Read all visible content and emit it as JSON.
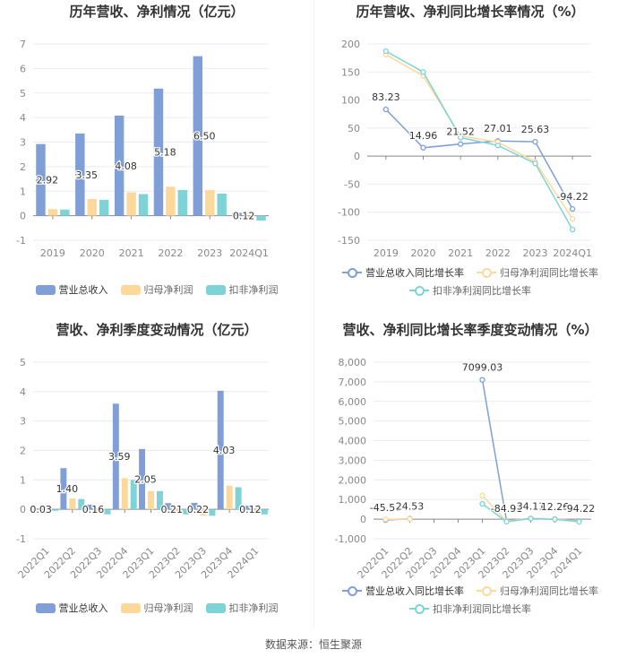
{
  "colors": {
    "revenue": "#7f9fd6",
    "net": "#fdd89b",
    "deducted": "#7dd3d5"
  },
  "footer": "数据来源：恒生聚源",
  "chart_data": [
    {
      "type": "bar",
      "title": "历年营收、净利情况（亿元）",
      "categories": [
        "2019",
        "2020",
        "2021",
        "2022",
        "2023",
        "2024Q1"
      ],
      "ylim": [
        -1,
        7
      ],
      "yticks": [
        -1,
        0,
        1,
        2,
        3,
        4,
        5,
        6,
        7
      ],
      "grid": true,
      "legend": "bottom",
      "series": [
        {
          "name": "营业总收入",
          "values": [
            2.92,
            3.35,
            4.08,
            5.18,
            6.5,
            0.12
          ],
          "labels": [
            "2.92",
            "3.35",
            "4.08",
            "5.18",
            "6.50",
            "0.12"
          ]
        },
        {
          "name": "归母净利润",
          "values": [
            0.27,
            0.68,
            0.95,
            1.18,
            1.04,
            -0.03
          ]
        },
        {
          "name": "扣非净利润",
          "values": [
            0.25,
            0.65,
            0.88,
            1.05,
            0.9,
            -0.2
          ]
        }
      ]
    },
    {
      "type": "line",
      "title": "历年营收、净利同比增长率情况（%）",
      "categories": [
        "2019",
        "2020",
        "2021",
        "2022",
        "2023",
        "2024Q1"
      ],
      "ylim": [
        -150,
        200
      ],
      "yticks": [
        -150,
        -100,
        -50,
        0,
        50,
        100,
        150,
        200
      ],
      "grid": true,
      "legend": "bottom",
      "series": [
        {
          "name": "营业总收入同比增长率",
          "values": [
            83.23,
            14.96,
            21.52,
            27.01,
            25.63,
            -94.22
          ],
          "labels": [
            "83.23",
            "14.96",
            "21.52",
            "27.01",
            "25.63",
            "-94.22"
          ]
        },
        {
          "name": "归母净利润同比增长率",
          "values": [
            181,
            143,
            36,
            25,
            -10,
            -112
          ]
        },
        {
          "name": "扣非净利润同比增长率",
          "values": [
            187,
            150,
            33,
            19,
            -13,
            -131
          ]
        }
      ]
    },
    {
      "type": "bar",
      "title": "营收、净利季度变动情况（亿元）",
      "categories": [
        "2022Q1",
        "2022Q2",
        "2022Q3",
        "2022Q4",
        "2023Q1",
        "2023Q2",
        "2023Q3",
        "2023Q4",
        "2024Q1"
      ],
      "ylim": [
        -1,
        5
      ],
      "yticks": [
        -1,
        0,
        1,
        2,
        3,
        4,
        5
      ],
      "grid": true,
      "legend": "bottom",
      "series": [
        {
          "name": "营业总收入",
          "values": [
            0.03,
            1.4,
            0.16,
            3.59,
            2.05,
            0.21,
            0.22,
            4.03,
            0.12
          ],
          "labels": [
            "0.03",
            "1.40",
            "0.16",
            "3.59",
            "2.05",
            "0.21",
            "0.22",
            "4.03",
            "0.12"
          ]
        },
        {
          "name": "归母净利润",
          "values": [
            -0.02,
            0.37,
            -0.12,
            1.06,
            0.62,
            -0.12,
            -0.22,
            0.8,
            -0.02
          ]
        },
        {
          "name": "扣非净利润",
          "values": [
            -0.05,
            0.35,
            -0.17,
            1.0,
            0.62,
            -0.17,
            -0.22,
            0.75,
            -0.17
          ]
        }
      ]
    },
    {
      "type": "line",
      "title": "营收、净利同比增长率季度变动情况（%）",
      "categories": [
        "2022Q1",
        "2022Q2",
        "2022Q3",
        "2022Q4",
        "2023Q1",
        "2023Q2",
        "2023Q3",
        "2023Q4",
        "2024Q1"
      ],
      "ylim": [
        -1000,
        8000
      ],
      "yticks": [
        -1000,
        0,
        1000,
        2000,
        3000,
        4000,
        5000,
        6000,
        7000,
        8000
      ],
      "grid": true,
      "legend": "bottom",
      "series": [
        {
          "name": "营业总收入同比增长率",
          "values": [
            -45.53,
            24.53,
            null,
            null,
            7099.03,
            -84.91,
            34.11,
            12.26,
            -94.22
          ],
          "labels": [
            "-45.53",
            "24.53",
            "",
            "",
            "7099.03",
            "-84.91",
            "34.11",
            "12.26",
            "-94.22"
          ]
        },
        {
          "name": "归母净利润同比增长率",
          "values": [
            -10,
            10,
            null,
            null,
            1200,
            -100,
            40,
            10,
            -112
          ]
        },
        {
          "name": "扣非净利润同比增长率",
          "values": [
            null,
            null,
            null,
            null,
            780,
            -130,
            30,
            -10,
            -131
          ]
        }
      ]
    }
  ]
}
